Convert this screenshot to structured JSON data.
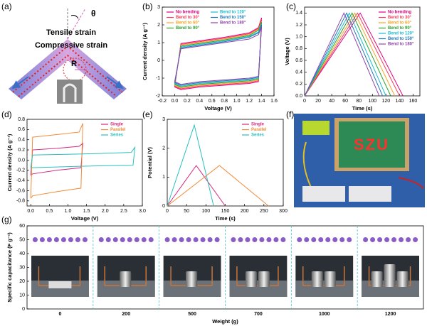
{
  "panel_labels": [
    "(a)",
    "(b)",
    "(c)",
    "(d)",
    "(e)",
    "(f)",
    "(g)"
  ],
  "panel_a": {
    "theta": "θ",
    "tensile": "Tensile strain",
    "compressive": "Compressive strain",
    "radius": "R"
  },
  "panel_f": {
    "led_text": "SZU"
  },
  "chart_data": [
    {
      "type": "line",
      "xlabel": "Voltage (V)",
      "ylabel": "Current density (A g⁻¹)",
      "xlim": [
        -0.2,
        1.6
      ],
      "xticks": [
        -0.2,
        {
          "value": 0,
          "label": "0.0"
        },
        0.2,
        0.4,
        0.6,
        0.8,
        {
          "value": 1,
          "label": "1.0"
        },
        1.2,
        1.4,
        1.6
      ],
      "ylim": [
        -2,
        3
      ],
      "yticks": [
        -2,
        -1,
        0,
        1,
        2,
        3
      ],
      "legend": "upper left",
      "legend_columns": 2,
      "x": [
        0,
        0.1,
        0.4,
        0.8,
        1.2,
        1.35,
        1.4,
        1.35,
        1.2,
        0.8,
        0.4,
        0.1,
        0
      ],
      "series": [
        {
          "name": "No bending",
          "color": "#e6007e",
          "values": [
            -1.5,
            0.95,
            1.1,
            1.3,
            1.55,
            1.85,
            2.4,
            -1.2,
            -1.3,
            -1.4,
            -1.5,
            -1.65,
            -1.5
          ]
        },
        {
          "name": "Bend to 30°",
          "color": "#f03c5a",
          "values": [
            -1.45,
            0.9,
            1.05,
            1.25,
            1.5,
            1.8,
            2.3,
            -1.15,
            -1.25,
            -1.35,
            -1.45,
            -1.6,
            -1.45
          ]
        },
        {
          "name": "Bend to 60°",
          "color": "#f5a623",
          "values": [
            -1.4,
            0.85,
            1.0,
            1.2,
            1.45,
            1.75,
            2.2,
            -1.1,
            -1.2,
            -1.3,
            -1.4,
            -1.55,
            -1.4
          ]
        },
        {
          "name": "Bend to 90°",
          "color": "#2ca02c",
          "values": [
            -1.35,
            0.8,
            0.95,
            1.15,
            1.4,
            1.7,
            2.15,
            -1.05,
            -1.15,
            -1.25,
            -1.35,
            -1.5,
            -1.35
          ]
        },
        {
          "name": "Bend to 120°",
          "color": "#17becf",
          "values": [
            -1.3,
            0.75,
            0.9,
            1.1,
            1.35,
            1.6,
            2.05,
            -1.0,
            -1.1,
            -1.2,
            -1.3,
            -1.45,
            -1.3
          ]
        },
        {
          "name": "Bend to 150°",
          "color": "#1f77b4",
          "values": [
            -1.25,
            0.7,
            0.85,
            1.05,
            1.3,
            1.55,
            2.0,
            -0.95,
            -1.05,
            -1.15,
            -1.25,
            -1.4,
            -1.25
          ]
        },
        {
          "name": "Bend to 180°",
          "color": "#8e44ad",
          "values": [
            -1.2,
            0.65,
            0.8,
            1.0,
            1.2,
            1.45,
            1.9,
            -0.9,
            -1.0,
            -1.1,
            -1.2,
            -1.35,
            -1.2
          ]
        }
      ]
    },
    {
      "type": "line",
      "xlabel": "Time (s)",
      "ylabel": "Voltage (V)",
      "xlim": [
        0,
        170
      ],
      "xticks": [
        0,
        20,
        40,
        60,
        80,
        100,
        120,
        140,
        160
      ],
      "ylim": [
        0,
        1.5
      ],
      "yticks": [
        {
          "value": 0,
          "label": "0.0"
        },
        0.2,
        0.4,
        0.6,
        0.8,
        {
          "value": 1,
          "label": "1.0"
        },
        1.2,
        1.4
      ],
      "legend": "upper right",
      "legend_columns": 1,
      "series": [
        {
          "name": "No bending",
          "color": "#e6007e",
          "x": [
            0,
            82,
            145
          ],
          "values": [
            0,
            1.4,
            0
          ]
        },
        {
          "name": "Bend to 30°",
          "color": "#f03c5a",
          "x": [
            0,
            78,
            140
          ],
          "values": [
            0,
            1.4,
            0
          ]
        },
        {
          "name": "Bend to 60°",
          "color": "#f5a623",
          "x": [
            0,
            74,
            133
          ],
          "values": [
            0,
            1.4,
            0
          ]
        },
        {
          "name": "Bend to 90°",
          "color": "#2ca02c",
          "x": [
            0,
            70,
            127
          ],
          "values": [
            0,
            1.4,
            0
          ]
        },
        {
          "name": "Bend to 120°",
          "color": "#17becf",
          "x": [
            0,
            66,
            120
          ],
          "values": [
            0,
            1.4,
            0
          ]
        },
        {
          "name": "Bend to 150°",
          "color": "#1f77b4",
          "x": [
            0,
            62,
            115
          ],
          "values": [
            0,
            1.4,
            0
          ]
        },
        {
          "name": "Bend to 180°",
          "color": "#8e44ad",
          "x": [
            0,
            58,
            110
          ],
          "values": [
            0,
            1.4,
            0
          ]
        }
      ]
    },
    {
      "type": "line",
      "xlabel": "Voltage (V)",
      "ylabel": "Current density (A g⁻¹)",
      "xlim": [
        -0.1,
        3
      ],
      "xticks": [
        {
          "value": 0,
          "label": "0.0"
        },
        0.5,
        {
          "value": 1,
          "label": "1.0"
        },
        1.5,
        {
          "value": 2,
          "label": "2.0"
        },
        2.5,
        {
          "value": 3,
          "label": "3.0"
        }
      ],
      "ylim": [
        -0.9,
        0.8
      ],
      "yticks": [
        -0.8,
        -0.6,
        -0.4,
        -0.2,
        {
          "value": 0,
          "label": "0.0"
        },
        0.2,
        0.4,
        0.6,
        0.8
      ],
      "legend": "upper right",
      "legend_columns": 1,
      "series": [
        {
          "name": "Single",
          "color": "#d6287f",
          "x": [
            0,
            0.05,
            0.7,
            1.3,
            1.4,
            1.35,
            0.7,
            0.05,
            0
          ],
          "values": [
            -0.3,
            0.2,
            0.23,
            0.27,
            0.33,
            -0.15,
            -0.2,
            -0.27,
            -0.3
          ]
        },
        {
          "name": "Parallel",
          "color": "#f08c3a",
          "x": [
            0,
            0.05,
            0.7,
            1.3,
            1.4,
            1.35,
            0.7,
            0.05,
            0
          ],
          "values": [
            -0.75,
            0.45,
            0.5,
            0.55,
            0.72,
            -0.55,
            -0.62,
            -0.7,
            -0.75
          ]
        },
        {
          "name": "Series",
          "color": "#2bbfbf",
          "x": [
            0,
            0.05,
            1.4,
            2.7,
            2.8,
            2.75,
            1.4,
            0.05,
            0
          ],
          "values": [
            -0.15,
            0.1,
            0.12,
            0.15,
            0.25,
            -0.1,
            -0.12,
            -0.15,
            -0.15
          ]
        }
      ]
    },
    {
      "type": "line",
      "xlabel": "Time (s)",
      "ylabel": "Potential (V)",
      "xlim": [
        0,
        300
      ],
      "xticks": [
        0,
        50,
        100,
        150,
        200,
        250,
        300
      ],
      "ylim": [
        0,
        3
      ],
      "yticks": [
        0,
        1,
        2,
        3
      ],
      "legend": "upper right",
      "legend_columns": 1,
      "series": [
        {
          "name": "Single",
          "color": "#d6287f",
          "x": [
            0,
            75,
            150
          ],
          "values": [
            0,
            1.4,
            0
          ]
        },
        {
          "name": "Parallel",
          "color": "#f08c3a",
          "x": [
            0,
            135,
            262
          ],
          "values": [
            0,
            1.4,
            0
          ]
        },
        {
          "name": "Series",
          "color": "#2bbfbf",
          "x": [
            0,
            70,
            120
          ],
          "values": [
            0,
            2.8,
            0
          ]
        }
      ]
    },
    {
      "type": "scatter",
      "xlabel": "Weight (g)",
      "ylabel": "Specific capacitance (F g⁻¹)",
      "categories": [
        "0",
        "200",
        "500",
        "700",
        "1000",
        "1200"
      ],
      "ylim": [
        0,
        60
      ],
      "yticks": [
        0,
        10,
        20,
        30,
        40,
        50,
        60
      ],
      "color": "#8a5cc8",
      "values": [
        [
          50,
          50,
          50,
          50,
          50,
          50,
          50,
          50
        ],
        [
          50,
          50,
          50,
          50,
          50,
          50,
          50,
          50
        ],
        [
          50,
          50,
          50,
          50,
          50,
          50,
          50,
          50
        ],
        [
          50,
          50,
          50,
          50,
          50,
          50,
          50,
          50
        ],
        [
          50,
          50,
          50,
          50,
          50,
          50,
          50,
          50
        ],
        [
          50,
          50,
          50,
          50,
          50,
          50,
          50,
          50
        ]
      ]
    }
  ]
}
